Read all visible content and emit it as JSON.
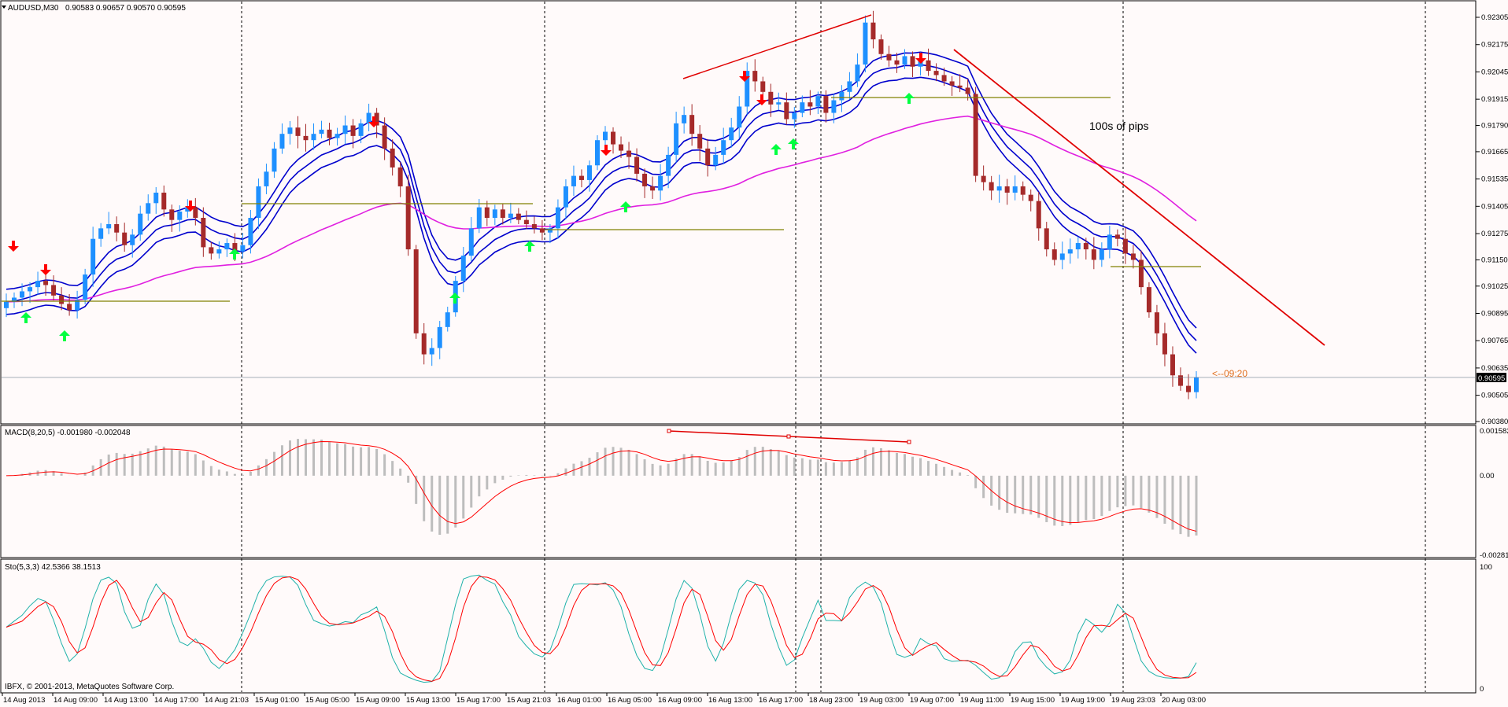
{
  "main": {
    "title": "AUDUSD,M30",
    "ohlc": "0.90583 0.90657 0.90570 0.90595",
    "price_ticks": [
      "0.92305",
      "0.92175",
      "0.92045",
      "0.91915",
      "0.91790",
      "0.91665",
      "0.91535",
      "0.91405",
      "0.91275",
      "0.91150",
      "0.91025",
      "0.90895",
      "0.90765",
      "0.90635",
      "0.90505",
      "0.90380"
    ],
    "current_price": "0.90595",
    "countdown": "<--09:20",
    "annotation": "100s of pips"
  },
  "macd": {
    "title": "MACD(8,20,5) -0.001980 -0.002048",
    "ticks": [
      "0.001582",
      "0.00",
      "-0.002812"
    ]
  },
  "stoch": {
    "title": "Sto(5,3,3) 42.5366 38.1513",
    "ticks": [
      "100",
      "0"
    ]
  },
  "footer": {
    "copyright": "IBFX, © 2001-2013, MetaQuotes Software Corp."
  },
  "time_axis": [
    "14 Aug 2013",
    "14 Aug 09:00",
    "14 Aug 13:00",
    "14 Aug 17:00",
    "14 Aug 21:03",
    "15 Aug 01:00",
    "15 Aug 05:00",
    "15 Aug 09:00",
    "15 Aug 13:00",
    "15 Aug 17:00",
    "15 Aug 21:03",
    "16 Aug 01:00",
    "16 Aug 05:00",
    "16 Aug 09:00",
    "16 Aug 13:00",
    "16 Aug 17:00",
    "18 Aug 23:00",
    "19 Aug 03:00",
    "19 Aug 07:00",
    "19 Aug 11:00",
    "19 Aug 15:00",
    "19 Aug 19:00",
    "19 Aug 23:03",
    "20 Aug 03:00"
  ],
  "colors": {
    "bull": "#1e90ff",
    "bear": "#a52a2a",
    "ma_blue": "#0000cd",
    "ma_magenta": "#e020e0",
    "olive": "#808000",
    "trend": "#e00000",
    "macd_signal": "#ff0000",
    "stoch_main": "#20b2aa",
    "stoch_signal": "#ff0000",
    "up_arrow": "#00ff40",
    "down_arrow": "#ff0000"
  },
  "chart_data": [
    {
      "type": "candlestick",
      "title": "AUDUSD,M30",
      "ylim": [
        0.9038,
        0.9235
      ],
      "x_labels": [
        "14 Aug 2013",
        "14 Aug 09:00",
        "14 Aug 13:00",
        "14 Aug 17:00",
        "14 Aug 21:03",
        "15 Aug 01:00",
        "15 Aug 05:00",
        "15 Aug 09:00",
        "15 Aug 13:00",
        "15 Aug 17:00",
        "15 Aug 21:03",
        "16 Aug 01:00",
        "16 Aug 05:00",
        "16 Aug 09:00",
        "16 Aug 13:00",
        "16 Aug 17:00",
        "18 Aug 23:00",
        "19 Aug 03:00",
        "19 Aug 07:00",
        "19 Aug 11:00",
        "19 Aug 15:00",
        "19 Aug 19:00",
        "19 Aug 23:03",
        "20 Aug 03:00"
      ],
      "close_path": [
        0.9095,
        0.9097,
        0.91,
        0.9102,
        0.9105,
        0.9103,
        0.9098,
        0.9094,
        0.9091,
        0.9096,
        0.9108,
        0.9125,
        0.913,
        0.9132,
        0.9128,
        0.9122,
        0.9127,
        0.9137,
        0.9142,
        0.9147,
        0.9139,
        0.9134,
        0.9138,
        0.914,
        0.9135,
        0.9121,
        0.9118,
        0.912,
        0.9123,
        0.9119,
        0.9122,
        0.9135,
        0.915,
        0.9157,
        0.9168,
        0.9175,
        0.9178,
        0.9174,
        0.9172,
        0.9175,
        0.9177,
        0.9173,
        0.9175,
        0.9179,
        0.9174,
        0.918,
        0.9185,
        0.9179,
        0.9168,
        0.9159,
        0.915,
        0.912,
        0.908,
        0.907,
        0.9073,
        0.9083,
        0.909,
        0.9105,
        0.9117,
        0.913,
        0.914,
        0.9135,
        0.9139,
        0.9135,
        0.9137,
        0.9134,
        0.9132,
        0.913,
        0.9128,
        0.913,
        0.914,
        0.915,
        0.9155,
        0.9153,
        0.916,
        0.9172,
        0.9176,
        0.917,
        0.9167,
        0.9164,
        0.9156,
        0.915,
        0.9148,
        0.9155,
        0.9165,
        0.918,
        0.9184,
        0.9175,
        0.9168,
        0.916,
        0.9165,
        0.9172,
        0.9178,
        0.9188,
        0.9205,
        0.92,
        0.9195,
        0.9189,
        0.919,
        0.9182,
        0.9185,
        0.919,
        0.9188,
        0.9193,
        0.9185,
        0.9191,
        0.9195,
        0.92,
        0.9208,
        0.9228,
        0.922,
        0.9213,
        0.921,
        0.9208,
        0.9212,
        0.9207,
        0.921,
        0.9205,
        0.9203,
        0.92,
        0.9198,
        0.9197,
        0.9194,
        0.9155,
        0.9152,
        0.9148,
        0.915,
        0.9147,
        0.915,
        0.9146,
        0.9143,
        0.913,
        0.912,
        0.9115,
        0.9118,
        0.912,
        0.9123,
        0.912,
        0.9115,
        0.912,
        0.9127,
        0.9125,
        0.9118,
        0.9115,
        0.9102,
        0.909,
        0.908,
        0.907,
        0.906,
        0.9055,
        0.9052,
        0.9059
      ]
    },
    {
      "type": "bar",
      "title": "MACD(8,20,5)",
      "ylim": [
        -0.002812,
        0.001582
      ],
      "current": {
        "macd": -0.00198,
        "signal": -0.002048
      }
    },
    {
      "type": "line",
      "title": "Sto(5,3,3)",
      "ylim": [
        0,
        100
      ],
      "current": {
        "main": 42.5366,
        "signal": 38.1513
      }
    }
  ]
}
